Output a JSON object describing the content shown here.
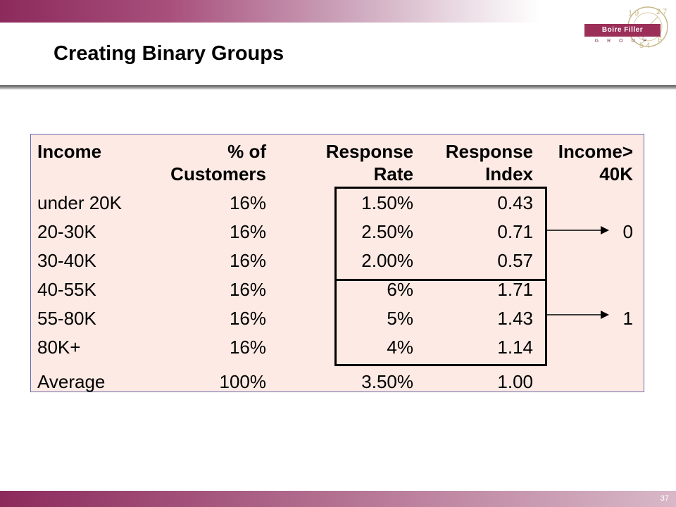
{
  "slide": {
    "title": "Creating Binary Groups",
    "page_number": "37"
  },
  "logo": {
    "name": "Boire Filler",
    "subtitle": "G R O U P"
  },
  "table": {
    "headers": {
      "income": [
        "Income",
        ""
      ],
      "pct": [
        "% of",
        "Customers"
      ],
      "rate": [
        "Response",
        "Rate"
      ],
      "index": [
        "Response",
        "Index"
      ],
      "binary": [
        "Income>",
        "40K"
      ]
    },
    "rows": [
      {
        "income": "under 20K",
        "pct": "16%",
        "rate": "1.50%",
        "index": "0.43"
      },
      {
        "income": "20-30K",
        "pct": "16%",
        "rate": "2.50%",
        "index": "0.71"
      },
      {
        "income": "30-40K",
        "pct": "16%",
        "rate": "2.00%",
        "index": "0.57"
      },
      {
        "income": "40-55K",
        "pct": "16%",
        "rate": "6%",
        "index": "1.71"
      },
      {
        "income": "55-80K",
        "pct": "16%",
        "rate": "5%",
        "index": "1.43"
      },
      {
        "income": "80K+",
        "pct": "16%",
        "rate": "4%",
        "index": "1.14"
      },
      {
        "income": "Average",
        "pct": "100%",
        "rate": "3.50%",
        "index": "1.00"
      }
    ],
    "groups": [
      {
        "value": "0"
      },
      {
        "value": "1"
      }
    ]
  }
}
